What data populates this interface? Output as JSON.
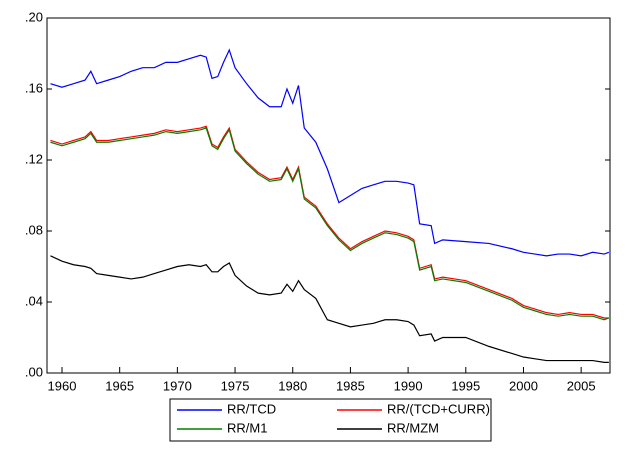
{
  "chart_data": {
    "type": "line",
    "x": [
      1959,
      1960,
      1961,
      1962,
      1962.5,
      1963,
      1964,
      1965,
      1966,
      1967,
      1968,
      1969,
      1970,
      1971,
      1972,
      1972.5,
      1973,
      1973.5,
      1974,
      1974.5,
      1975,
      1976,
      1977,
      1978,
      1979,
      1979.5,
      1980,
      1980.5,
      1981,
      1982,
      1983,
      1984,
      1985,
      1986,
      1987,
      1988,
      1989,
      1990,
      1990.5,
      1991,
      1992,
      1992.3,
      1993,
      1995,
      1997,
      1999,
      2000,
      2001,
      2002,
      2003,
      2004,
      2005,
      2006,
      2007,
      2007.4
    ],
    "series": [
      {
        "name": "RR/TCD",
        "color": "#0000ff",
        "values": [
          0.163,
          0.161,
          0.163,
          0.165,
          0.17,
          0.163,
          0.165,
          0.167,
          0.17,
          0.172,
          0.172,
          0.175,
          0.175,
          0.177,
          0.179,
          0.178,
          0.166,
          0.167,
          0.175,
          0.182,
          0.172,
          0.163,
          0.155,
          0.15,
          0.15,
          0.16,
          0.152,
          0.162,
          0.138,
          0.13,
          0.115,
          0.096,
          0.1,
          0.104,
          0.106,
          0.108,
          0.108,
          0.107,
          0.106,
          0.084,
          0.083,
          0.073,
          0.075,
          0.074,
          0.073,
          0.07,
          0.068,
          0.067,
          0.066,
          0.067,
          0.067,
          0.066,
          0.068,
          0.067,
          0.068
        ]
      },
      {
        "name": "RR/(TCD+CURR)",
        "color": "#ff0000",
        "values": [
          0.131,
          0.129,
          0.131,
          0.133,
          0.136,
          0.131,
          0.131,
          0.132,
          0.133,
          0.134,
          0.135,
          0.137,
          0.136,
          0.137,
          0.138,
          0.139,
          0.129,
          0.127,
          0.133,
          0.138,
          0.126,
          0.119,
          0.113,
          0.109,
          0.11,
          0.116,
          0.109,
          0.116,
          0.099,
          0.094,
          0.084,
          0.076,
          0.07,
          0.074,
          0.077,
          0.08,
          0.079,
          0.077,
          0.075,
          0.059,
          0.061,
          0.053,
          0.054,
          0.052,
          0.047,
          0.042,
          0.038,
          0.036,
          0.034,
          0.033,
          0.034,
          0.033,
          0.033,
          0.031,
          0.031
        ]
      },
      {
        "name": "RR/M1",
        "color": "#008000",
        "values": [
          0.13,
          0.128,
          0.13,
          0.132,
          0.135,
          0.13,
          0.13,
          0.131,
          0.132,
          0.133,
          0.134,
          0.136,
          0.135,
          0.136,
          0.137,
          0.138,
          0.128,
          0.126,
          0.132,
          0.137,
          0.125,
          0.118,
          0.112,
          0.108,
          0.109,
          0.115,
          0.108,
          0.115,
          0.098,
          0.093,
          0.083,
          0.075,
          0.069,
          0.073,
          0.076,
          0.079,
          0.078,
          0.076,
          0.074,
          0.058,
          0.06,
          0.052,
          0.053,
          0.051,
          0.046,
          0.041,
          0.037,
          0.035,
          0.033,
          0.032,
          0.033,
          0.032,
          0.032,
          0.03,
          0.031
        ]
      },
      {
        "name": "RR/MZM",
        "color": "#000000",
        "values": [
          0.066,
          0.063,
          0.061,
          0.06,
          0.059,
          0.056,
          0.055,
          0.054,
          0.053,
          0.054,
          0.056,
          0.058,
          0.06,
          0.061,
          0.06,
          0.061,
          0.057,
          0.057,
          0.06,
          0.062,
          0.055,
          0.049,
          0.045,
          0.044,
          0.045,
          0.05,
          0.046,
          0.052,
          0.047,
          0.042,
          0.03,
          0.028,
          0.026,
          0.027,
          0.028,
          0.03,
          0.03,
          0.029,
          0.027,
          0.021,
          0.022,
          0.018,
          0.02,
          0.02,
          0.015,
          0.011,
          0.009,
          0.008,
          0.007,
          0.007,
          0.007,
          0.007,
          0.007,
          0.006,
          0.006
        ]
      }
    ],
    "xlim": [
      1958.7,
      2007.5
    ],
    "xticks": [
      1960,
      1965,
      1970,
      1975,
      1980,
      1985,
      1990,
      1995,
      2000,
      2005
    ],
    "ylim": [
      0,
      0.2
    ],
    "yticks": [
      {
        "value": 0,
        "label": ".00"
      },
      {
        "value": 0.04,
        "label": ".04"
      },
      {
        "value": 0.08,
        "label": ".08"
      },
      {
        "value": 0.12,
        "label": ".12"
      },
      {
        "value": 0.16,
        "label": ".16"
      },
      {
        "value": 0.2,
        "label": ".20"
      }
    ],
    "grid": false
  }
}
